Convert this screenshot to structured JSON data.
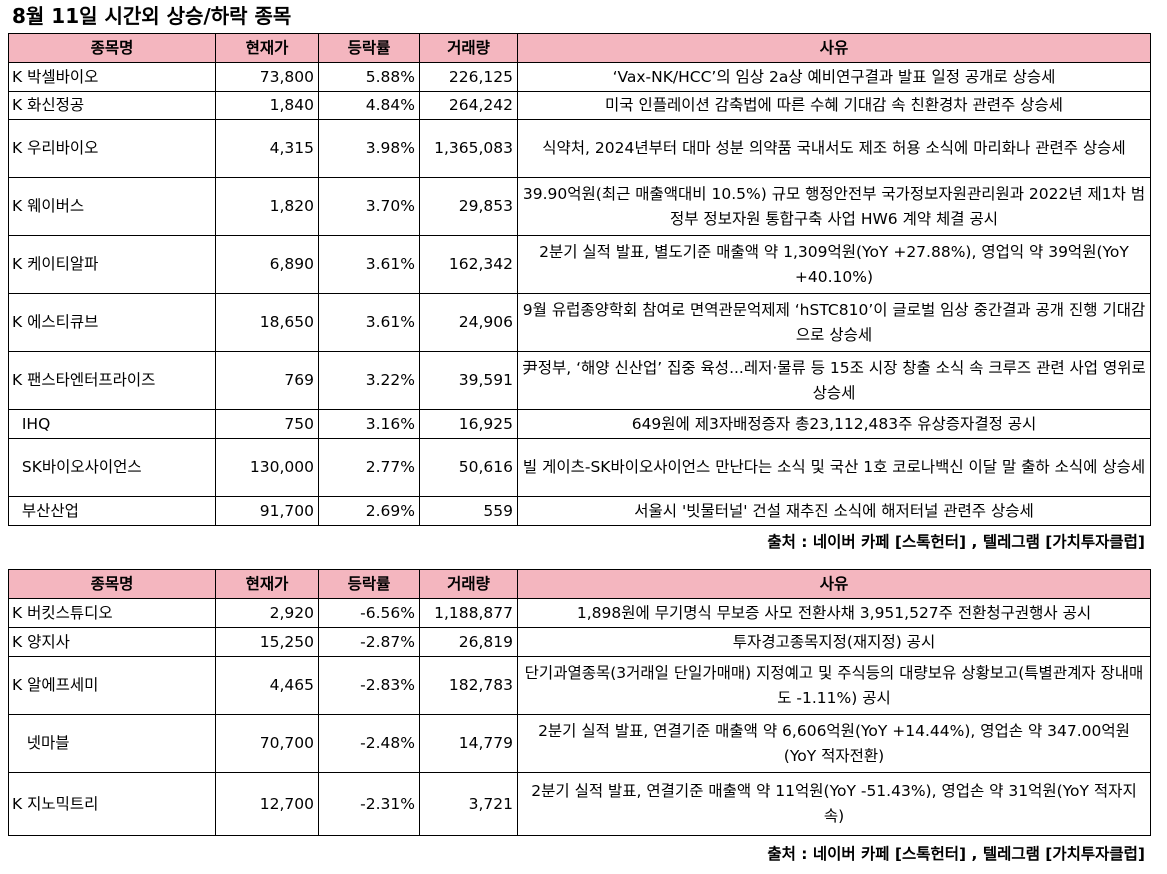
{
  "title": "8월 11일  시간외 상승/하락 종목",
  "headers": [
    "종목명",
    "현재가",
    "등락률",
    "거래량",
    "사유"
  ],
  "rising": [
    {
      "name": "K 박셀바이오",
      "price": "73,800",
      "change": "5.88%",
      "volume": "226,125",
      "reason": "‘Vax-NK/HCC’의 임상 2a상 예비연구결과 발표 일정 공개로 상승세"
    },
    {
      "name": "K 화신정공",
      "price": "1,840",
      "change": "4.84%",
      "volume": "264,242",
      "reason": "미국 인플레이션 감축법에 따른 수혜 기대감 속 친환경차 관련주 상승세"
    },
    {
      "name": "K 우리바이오",
      "price": "4,315",
      "change": "3.98%",
      "volume": "1,365,083",
      "reason": "식약처, 2024년부터 대마 성분 의약품 국내서도 제조 허용 소식에 마리화나 관련주 상승세"
    },
    {
      "name": "K 웨이버스",
      "price": "1,820",
      "change": "3.70%",
      "volume": "29,853",
      "reason": "39.90억원(최근 매출액대비 10.5%) 규모 행정안전부 국가정보자원관리원과 2022년 제1차 범정부 정보자원 통합구축 사업 HW6 계약 체결 공시"
    },
    {
      "name": "K 케이티알파",
      "price": "6,890",
      "change": "3.61%",
      "volume": "162,342",
      "reason": "2분기 실적 발표, 별도기준 매출액 약 1,309억원(YoY +27.88%), 영업익 약 39억원(YoY +40.10%)"
    },
    {
      "name": "K 에스티큐브",
      "price": "18,650",
      "change": "3.61%",
      "volume": "24,906",
      "reason": "9월 유럽종양학회 참여로 면역관문억제제 ‘hSTC810’이 글로벌 임상 중간결과 공개 진행 기대감으로 상승세"
    },
    {
      "name": "K 팬스타엔터프라이즈",
      "price": "769",
      "change": "3.22%",
      "volume": "39,591",
      "reason": "尹정부, ‘해양 신산업’ 집중 육성...레저·물류 등 15조 시장 창출 소식 속 크루즈 관련 사업 영위로 상승세"
    },
    {
      "name": "  IHQ",
      "price": "750",
      "change": "3.16%",
      "volume": "16,925",
      "reason": "649원에 제3자배정증자 총23,112,483주 유상증자결정 공시"
    },
    {
      "name": "  SK바이오사이언스",
      "price": "130,000",
      "change": "2.77%",
      "volume": "50,616",
      "reason": "빌 게이츠-SK바이오사이언스 만난다는 소식 및 국산 1호 코로나백신 이달 말 출하 소식에 상승세"
    },
    {
      "name": "  부산산업",
      "price": "91,700",
      "change": "2.69%",
      "volume": "559",
      "reason": "서울시 '빗물터널' 건설 재추진 소식에 해저터널 관련주 상승세"
    }
  ],
  "falling": [
    {
      "name": "K 버킷스튜디오",
      "price": "2,920",
      "change": "-6.56%",
      "volume": "1,188,877",
      "reason": "1,898원에 무기명식 무보증 사모 전환사채 3,951,527주 전환청구권행사 공시"
    },
    {
      "name": "K 양지사",
      "price": "15,250",
      "change": "-2.87%",
      "volume": "26,819",
      "reason": "투자경고종목지정(재지정) 공시"
    },
    {
      "name": "K 알에프세미",
      "price": "4,465",
      "change": "-2.83%",
      "volume": "182,783",
      "reason": "단기과열종목(3거래일 단일가매매) 지정예고 및 주식등의 대량보유 상황보고(특별관계자 장내매도 -1.11%) 공시"
    },
    {
      "name": "   넷마블",
      "price": "70,700",
      "change": "-2.48%",
      "volume": "14,779",
      "reason": "2분기 실적 발표, 연결기준 매출액 약 6,606억원(YoY +14.44%), 영업손 약 347.00억원(YoY 적자전환)"
    },
    {
      "name": "K 지노믹트리",
      "price": "12,700",
      "change": "-2.31%",
      "volume": "3,721",
      "reason": "2분기 실적 발표, 연결기준 매출액 약 11억원(YoY  -51.43%), 영업손 약 31억원(YoY  적자지속)"
    }
  ],
  "source": "출처 : 네이버 카페 [스톡헌터] , 텔레그램 [가치투자클럽]"
}
